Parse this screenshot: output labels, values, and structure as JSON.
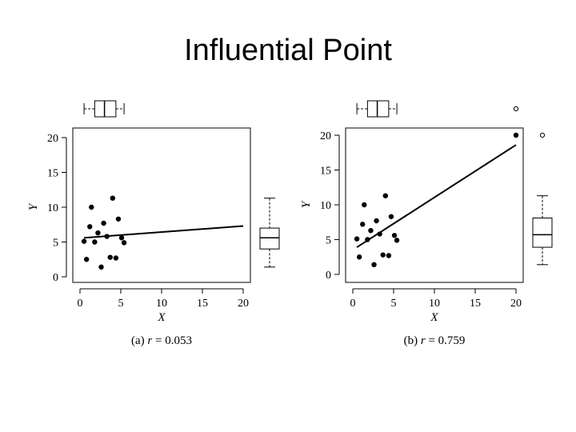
{
  "title": "Influential Point",
  "chart_data": [
    {
      "type": "scatter",
      "panel": "a",
      "caption_prefix": "(a) ",
      "caption_var": "r",
      "caption_eq": " = 0.053",
      "xlabel": "X",
      "ylabel": "Y",
      "xlim": [
        0,
        20
      ],
      "ylim": [
        0,
        20
      ],
      "xticks": [
        0,
        5,
        10,
        15,
        20
      ],
      "yticks": [
        0,
        5,
        10,
        15,
        20
      ],
      "points": [
        [
          0.5,
          5.1
        ],
        [
          0.8,
          2.5
        ],
        [
          1.2,
          7.2
        ],
        [
          1.4,
          10.0
        ],
        [
          1.8,
          5.0
        ],
        [
          2.2,
          6.3
        ],
        [
          2.6,
          1.4
        ],
        [
          2.9,
          7.7
        ],
        [
          3.3,
          5.8
        ],
        [
          3.7,
          2.8
        ],
        [
          4.0,
          11.3
        ],
        [
          4.4,
          2.7
        ],
        [
          4.7,
          8.3
        ],
        [
          5.1,
          5.6
        ],
        [
          5.4,
          4.9
        ]
      ],
      "regression_line": [
        [
          0.5,
          5.6
        ],
        [
          20.0,
          7.3
        ]
      ],
      "x_box": {
        "min": 0.5,
        "q1": 1.8,
        "median": 3.0,
        "q3": 4.4,
        "max": 5.4
      },
      "y_box": {
        "min": 1.4,
        "q1": 4.0,
        "median": 5.6,
        "q3": 7.0,
        "max": 11.3
      }
    },
    {
      "type": "scatter",
      "panel": "b",
      "caption_prefix": "(b) ",
      "caption_var": "r",
      "caption_eq": " = 0.759",
      "xlabel": "X",
      "ylabel": "Y",
      "xlim": [
        0,
        20
      ],
      "ylim": [
        0,
        20
      ],
      "xticks": [
        0,
        5,
        10,
        15,
        20
      ],
      "yticks": [
        0,
        5,
        10,
        15,
        20
      ],
      "points": [
        [
          0.5,
          5.1
        ],
        [
          0.8,
          2.5
        ],
        [
          1.2,
          7.2
        ],
        [
          1.4,
          10.0
        ],
        [
          1.8,
          5.0
        ],
        [
          2.2,
          6.3
        ],
        [
          2.6,
          1.4
        ],
        [
          2.9,
          7.7
        ],
        [
          3.3,
          5.8
        ],
        [
          3.7,
          2.8
        ],
        [
          4.0,
          11.3
        ],
        [
          4.4,
          2.7
        ],
        [
          4.7,
          8.3
        ],
        [
          5.1,
          5.6
        ],
        [
          5.4,
          4.9
        ],
        [
          20.0,
          20.0
        ]
      ],
      "regression_line": [
        [
          0.5,
          3.9
        ],
        [
          20.0,
          18.6
        ]
      ],
      "x_box": {
        "min": 0.5,
        "q1": 1.8,
        "median": 3.0,
        "q3": 4.4,
        "max": 5.4,
        "outlier": 20.0
      },
      "y_box": {
        "min": 1.4,
        "q1": 3.9,
        "median": 5.7,
        "q3": 8.1,
        "max": 11.3,
        "outlier": 20.0
      }
    }
  ]
}
